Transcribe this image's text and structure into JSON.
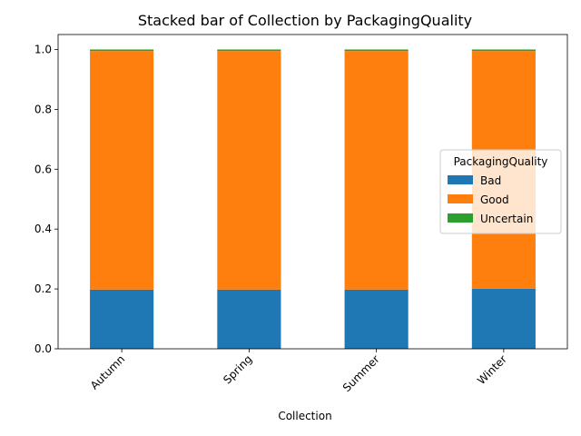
{
  "chart_data": {
    "type": "bar",
    "stacked": true,
    "title": "Stacked bar of Collection by PackagingQuality",
    "xlabel": "Collection",
    "ylabel": "",
    "categories": [
      "Autumn",
      "Spring",
      "Summer",
      "Winter"
    ],
    "series": [
      {
        "name": "Bad",
        "color": "#1f77b4",
        "values": [
          0.198,
          0.198,
          0.198,
          0.201
        ]
      },
      {
        "name": "Good",
        "color": "#ff7f0e",
        "values": [
          0.797,
          0.797,
          0.797,
          0.794
        ]
      },
      {
        "name": "Uncertain",
        "color": "#2ca02c",
        "values": [
          0.005,
          0.005,
          0.005,
          0.005
        ]
      }
    ],
    "ylim": [
      0,
      1.05
    ],
    "yticks": [
      "0.0",
      "0.2",
      "0.4",
      "0.6",
      "0.8",
      "1.0"
    ],
    "grid": false,
    "legend": {
      "title": "PackagingQuality",
      "placement": "center-right"
    }
  }
}
